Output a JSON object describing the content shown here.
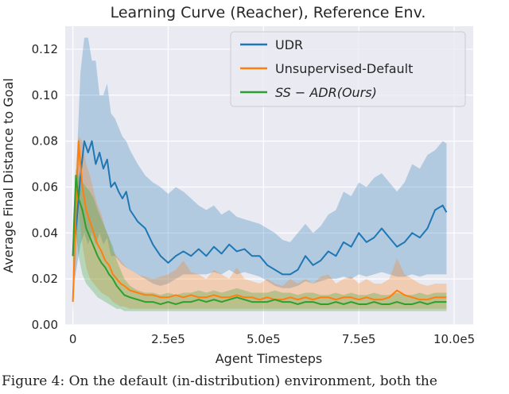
{
  "chart_data": {
    "type": "line",
    "title": "Learning Curve (Reacher), Reference Env.",
    "xlabel": "Agent Timesteps",
    "ylabel": "Average Final Distance to Goal",
    "xlim": [
      -20000,
      1050000
    ],
    "ylim": [
      0,
      0.13
    ],
    "xticks": [
      0,
      250000,
      500000,
      750000,
      1000000
    ],
    "xtick_labels": [
      "0",
      "2.5e5",
      "5.0e5",
      "7.5e5",
      "10.0e5"
    ],
    "yticks": [
      0.0,
      0.02,
      0.04,
      0.06,
      0.08,
      0.1,
      0.12
    ],
    "ytick_labels": [
      "0.00",
      "0.02",
      "0.04",
      "0.06",
      "0.08",
      "0.10",
      "0.12"
    ],
    "grid": true,
    "legend_position": "top-right",
    "background": "#eaeaf2",
    "series": [
      {
        "name": "UDR",
        "color": "#1f77b4",
        "x": [
          0,
          10000,
          20000,
          30000,
          40000,
          50000,
          60000,
          70000,
          80000,
          90000,
          100000,
          110000,
          120000,
          130000,
          140000,
          150000,
          170000,
          190000,
          210000,
          230000,
          250000,
          270000,
          290000,
          310000,
          330000,
          350000,
          370000,
          390000,
          410000,
          430000,
          450000,
          470000,
          490000,
          510000,
          530000,
          550000,
          570000,
          590000,
          610000,
          630000,
          650000,
          670000,
          690000,
          710000,
          730000,
          750000,
          770000,
          790000,
          810000,
          830000,
          850000,
          870000,
          890000,
          910000,
          930000,
          950000,
          970000,
          980000
        ],
        "y": [
          0.03,
          0.045,
          0.065,
          0.08,
          0.075,
          0.08,
          0.07,
          0.075,
          0.068,
          0.072,
          0.06,
          0.062,
          0.058,
          0.055,
          0.058,
          0.05,
          0.045,
          0.042,
          0.035,
          0.03,
          0.027,
          0.03,
          0.032,
          0.03,
          0.033,
          0.03,
          0.034,
          0.031,
          0.035,
          0.032,
          0.033,
          0.03,
          0.03,
          0.026,
          0.024,
          0.022,
          0.022,
          0.024,
          0.03,
          0.026,
          0.028,
          0.032,
          0.03,
          0.036,
          0.034,
          0.04,
          0.036,
          0.038,
          0.042,
          0.038,
          0.034,
          0.036,
          0.04,
          0.038,
          0.042,
          0.05,
          0.052,
          0.049
        ],
        "y_low": [
          0.015,
          0.025,
          0.035,
          0.04,
          0.035,
          0.04,
          0.035,
          0.04,
          0.035,
          0.038,
          0.03,
          0.03,
          0.028,
          0.026,
          0.025,
          0.024,
          0.022,
          0.02,
          0.018,
          0.017,
          0.018,
          0.02,
          0.022,
          0.022,
          0.022,
          0.022,
          0.023,
          0.022,
          0.024,
          0.022,
          0.023,
          0.022,
          0.021,
          0.019,
          0.017,
          0.016,
          0.016,
          0.017,
          0.019,
          0.018,
          0.019,
          0.02,
          0.02,
          0.021,
          0.02,
          0.022,
          0.021,
          0.022,
          0.023,
          0.022,
          0.021,
          0.021,
          0.022,
          0.021,
          0.022,
          0.022,
          0.022,
          0.022
        ],
        "y_high": [
          0.045,
          0.07,
          0.11,
          0.125,
          0.125,
          0.115,
          0.115,
          0.1,
          0.1,
          0.105,
          0.092,
          0.09,
          0.086,
          0.082,
          0.08,
          0.076,
          0.07,
          0.065,
          0.062,
          0.06,
          0.057,
          0.06,
          0.058,
          0.055,
          0.052,
          0.05,
          0.052,
          0.048,
          0.05,
          0.047,
          0.046,
          0.045,
          0.044,
          0.042,
          0.04,
          0.037,
          0.036,
          0.04,
          0.044,
          0.04,
          0.043,
          0.048,
          0.05,
          0.058,
          0.056,
          0.062,
          0.06,
          0.064,
          0.066,
          0.062,
          0.058,
          0.062,
          0.07,
          0.068,
          0.074,
          0.076,
          0.08,
          0.079
        ]
      },
      {
        "name": "Unsupervised-Default",
        "color": "#ff7f0e",
        "x": [
          0,
          8000,
          15000,
          25000,
          35000,
          45000,
          55000,
          65000,
          75000,
          85000,
          95000,
          105000,
          115000,
          125000,
          135000,
          150000,
          170000,
          190000,
          210000,
          230000,
          250000,
          270000,
          290000,
          310000,
          330000,
          350000,
          370000,
          390000,
          410000,
          430000,
          450000,
          470000,
          490000,
          510000,
          530000,
          550000,
          570000,
          590000,
          610000,
          630000,
          650000,
          670000,
          690000,
          710000,
          730000,
          750000,
          770000,
          790000,
          810000,
          830000,
          850000,
          870000,
          890000,
          910000,
          930000,
          950000,
          970000,
          980000
        ],
        "y": [
          0.01,
          0.05,
          0.08,
          0.06,
          0.05,
          0.045,
          0.04,
          0.035,
          0.032,
          0.028,
          0.026,
          0.022,
          0.02,
          0.018,
          0.017,
          0.015,
          0.014,
          0.013,
          0.013,
          0.012,
          0.012,
          0.013,
          0.012,
          0.013,
          0.012,
          0.012,
          0.013,
          0.012,
          0.012,
          0.013,
          0.012,
          0.012,
          0.011,
          0.012,
          0.011,
          0.011,
          0.012,
          0.011,
          0.012,
          0.011,
          0.012,
          0.012,
          0.011,
          0.012,
          0.012,
          0.011,
          0.012,
          0.011,
          0.011,
          0.012,
          0.015,
          0.013,
          0.012,
          0.011,
          0.011,
          0.012,
          0.012,
          0.012
        ],
        "y_low": [
          0.005,
          0.025,
          0.05,
          0.035,
          0.025,
          0.02,
          0.018,
          0.016,
          0.014,
          0.013,
          0.012,
          0.01,
          0.009,
          0.008,
          0.008,
          0.007,
          0.007,
          0.007,
          0.007,
          0.007,
          0.007,
          0.007,
          0.007,
          0.007,
          0.007,
          0.007,
          0.007,
          0.007,
          0.007,
          0.007,
          0.007,
          0.007,
          0.007,
          0.007,
          0.007,
          0.007,
          0.007,
          0.007,
          0.007,
          0.007,
          0.007,
          0.007,
          0.007,
          0.007,
          0.007,
          0.007,
          0.007,
          0.007,
          0.007,
          0.007,
          0.007,
          0.007,
          0.007,
          0.007,
          0.007,
          0.007,
          0.007,
          0.007
        ],
        "y_high": [
          0.015,
          0.07,
          0.082,
          0.08,
          0.07,
          0.065,
          0.058,
          0.052,
          0.048,
          0.042,
          0.038,
          0.032,
          0.03,
          0.028,
          0.026,
          0.024,
          0.022,
          0.021,
          0.02,
          0.021,
          0.022,
          0.024,
          0.028,
          0.023,
          0.022,
          0.02,
          0.024,
          0.022,
          0.02,
          0.025,
          0.02,
          0.019,
          0.018,
          0.02,
          0.018,
          0.017,
          0.02,
          0.018,
          0.02,
          0.018,
          0.021,
          0.022,
          0.018,
          0.02,
          0.021,
          0.018,
          0.02,
          0.018,
          0.018,
          0.02,
          0.029,
          0.022,
          0.02,
          0.018,
          0.017,
          0.018,
          0.018,
          0.018
        ]
      },
      {
        "name": "SS − ADR(Ours)",
        "color": "#2ca02c",
        "x": [
          0,
          8000,
          15000,
          25000,
          35000,
          45000,
          55000,
          65000,
          75000,
          85000,
          95000,
          105000,
          115000,
          125000,
          135000,
          150000,
          170000,
          190000,
          210000,
          230000,
          250000,
          270000,
          290000,
          310000,
          330000,
          350000,
          370000,
          390000,
          410000,
          430000,
          450000,
          470000,
          490000,
          510000,
          530000,
          550000,
          570000,
          590000,
          610000,
          630000,
          650000,
          670000,
          690000,
          710000,
          730000,
          750000,
          770000,
          790000,
          810000,
          830000,
          850000,
          870000,
          890000,
          910000,
          930000,
          950000,
          970000,
          980000
        ],
        "y": [
          0.03,
          0.065,
          0.055,
          0.05,
          0.042,
          0.038,
          0.034,
          0.03,
          0.027,
          0.025,
          0.022,
          0.02,
          0.017,
          0.015,
          0.013,
          0.012,
          0.011,
          0.01,
          0.01,
          0.009,
          0.01,
          0.009,
          0.01,
          0.01,
          0.011,
          0.01,
          0.011,
          0.01,
          0.011,
          0.012,
          0.011,
          0.01,
          0.01,
          0.01,
          0.011,
          0.01,
          0.01,
          0.009,
          0.01,
          0.01,
          0.009,
          0.009,
          0.01,
          0.009,
          0.01,
          0.009,
          0.009,
          0.01,
          0.009,
          0.009,
          0.01,
          0.009,
          0.009,
          0.01,
          0.009,
          0.01,
          0.01,
          0.01
        ],
        "y_low": [
          0.02,
          0.04,
          0.03,
          0.022,
          0.018,
          0.016,
          0.014,
          0.012,
          0.011,
          0.01,
          0.009,
          0.008,
          0.007,
          0.007,
          0.006,
          0.006,
          0.006,
          0.006,
          0.006,
          0.006,
          0.006,
          0.006,
          0.006,
          0.006,
          0.006,
          0.006,
          0.006,
          0.006,
          0.006,
          0.006,
          0.006,
          0.006,
          0.006,
          0.006,
          0.006,
          0.006,
          0.006,
          0.006,
          0.006,
          0.006,
          0.006,
          0.006,
          0.006,
          0.006,
          0.006,
          0.006,
          0.006,
          0.006,
          0.006,
          0.006,
          0.006,
          0.006,
          0.006,
          0.006,
          0.006,
          0.006,
          0.006,
          0.006
        ],
        "y_high": [
          0.04,
          0.068,
          0.065,
          0.062,
          0.06,
          0.058,
          0.055,
          0.05,
          0.046,
          0.042,
          0.038,
          0.034,
          0.028,
          0.024,
          0.02,
          0.017,
          0.015,
          0.014,
          0.014,
          0.013,
          0.014,
          0.013,
          0.014,
          0.014,
          0.015,
          0.014,
          0.015,
          0.014,
          0.015,
          0.016,
          0.015,
          0.014,
          0.014,
          0.014,
          0.015,
          0.014,
          0.014,
          0.013,
          0.014,
          0.014,
          0.013,
          0.013,
          0.014,
          0.013,
          0.014,
          0.013,
          0.013,
          0.014,
          0.013,
          0.013,
          0.014,
          0.013,
          0.013,
          0.014,
          0.013,
          0.014,
          0.014,
          0.014
        ]
      }
    ]
  },
  "caption": "Figure 4: On the default (in-distribution) environment, both the"
}
